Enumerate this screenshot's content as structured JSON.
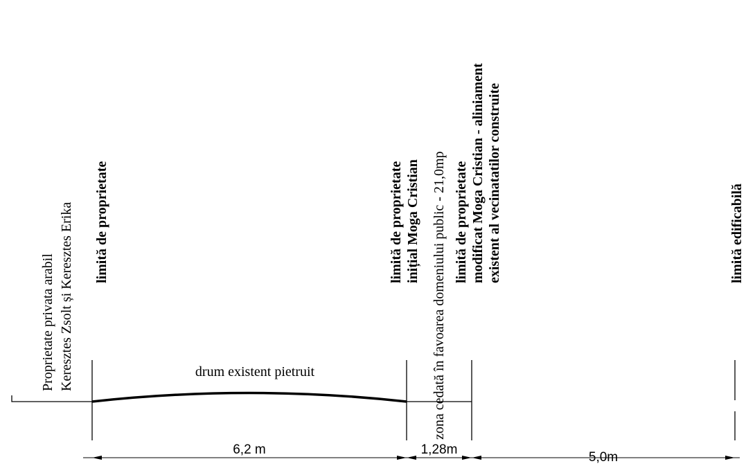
{
  "labels": {
    "left_owner_line1": "Proprietate privata arabil",
    "left_owner_line2": "Keresztes Zsolt și Keresztes Erika",
    "limit1": "limită de proprietate",
    "limit2_line1": "limită de proprietate",
    "limit2_line2": "inițial Moga Cristian",
    "ceded_zone": "zona cedată în favoarea domeniului public - 21,0mp",
    "limit3_line1": "limită de proprietate",
    "limit3_line2": "modificat Moga Cristian - aliniament",
    "limit3_line3": "existent al vecinatatilor construite",
    "limit4": "limită edificabilă",
    "road": "drum existent pietruit"
  },
  "dimensions": [
    {
      "label": "6,2 m"
    },
    {
      "label": "1,28m"
    },
    {
      "label": "5,0m"
    }
  ]
}
